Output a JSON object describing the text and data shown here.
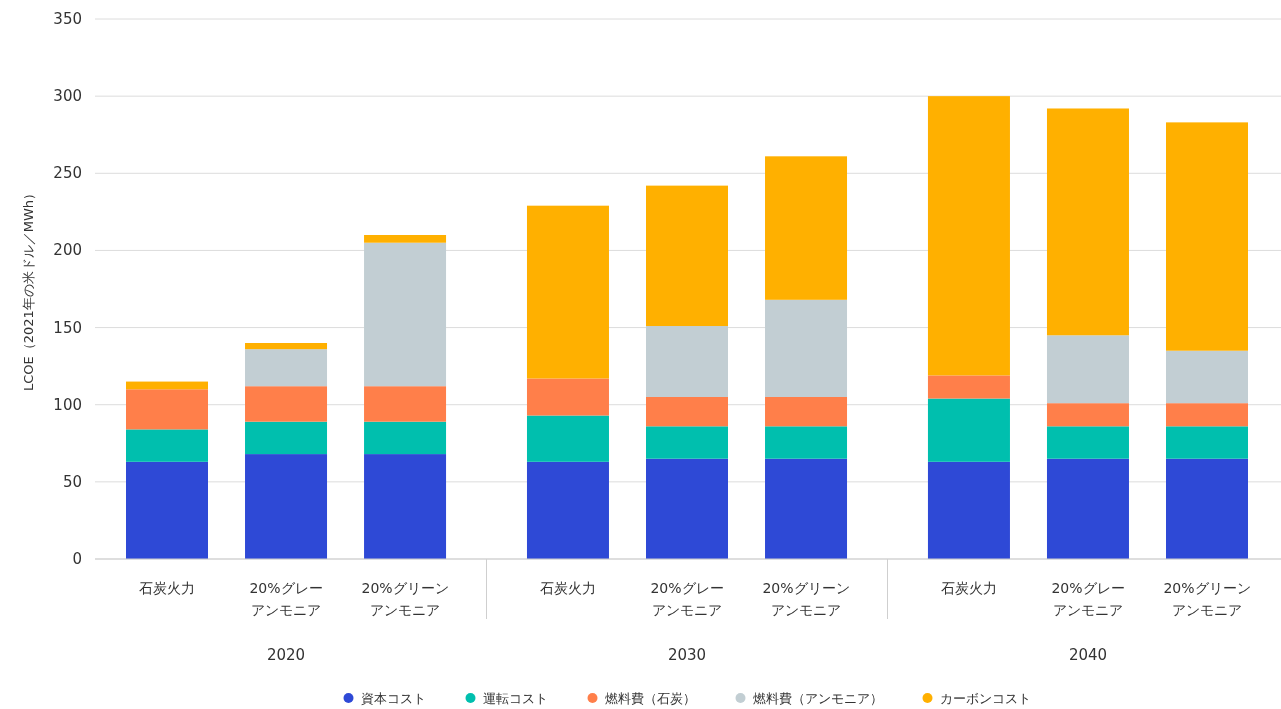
{
  "chart_data": {
    "type": "bar",
    "stacked": true,
    "ylabel": "LCOE（2021年の米ドル／MWh）",
    "categories": [
      "石炭火力",
      "20%グレーアンモニア",
      "20%グリーンアンモニア",
      "石炭火力",
      "20%グレーアンモニア",
      "20%グリーンアンモニア",
      "石炭火力",
      "20%グレーアンモニア",
      "20%グリーンアンモニア"
    ],
    "annotations": [
      "2020",
      "2030",
      "2040"
    ],
    "series": [
      {
        "name": "資本コスト",
        "color": "#2e49d6",
        "values": [
          63,
          68,
          68,
          63,
          65,
          65,
          63,
          65,
          65
        ]
      },
      {
        "name": "運転コスト",
        "color": "#00bfae",
        "values": [
          21,
          21,
          21,
          30,
          21,
          21,
          41,
          21,
          21
        ]
      },
      {
        "name": "燃料費（石炭）",
        "color": "#ff7f4a",
        "values": [
          26,
          23,
          23,
          24,
          19,
          19,
          15,
          15,
          15
        ]
      },
      {
        "name": "燃料費（アンモニア）",
        "color": "#c2ced3",
        "values": [
          0,
          24,
          93,
          0,
          46,
          63,
          0,
          44,
          34
        ]
      },
      {
        "name": "カーボンコスト",
        "color": "#ffb000",
        "values": [
          5,
          4,
          5,
          112,
          91,
          93,
          181,
          147,
          148
        ]
      }
    ],
    "ylim": [
      0,
      350
    ],
    "yticks": [
      0,
      50,
      100,
      150,
      200,
      250,
      300,
      350
    ],
    "grid": "y",
    "legend": "bottom"
  }
}
